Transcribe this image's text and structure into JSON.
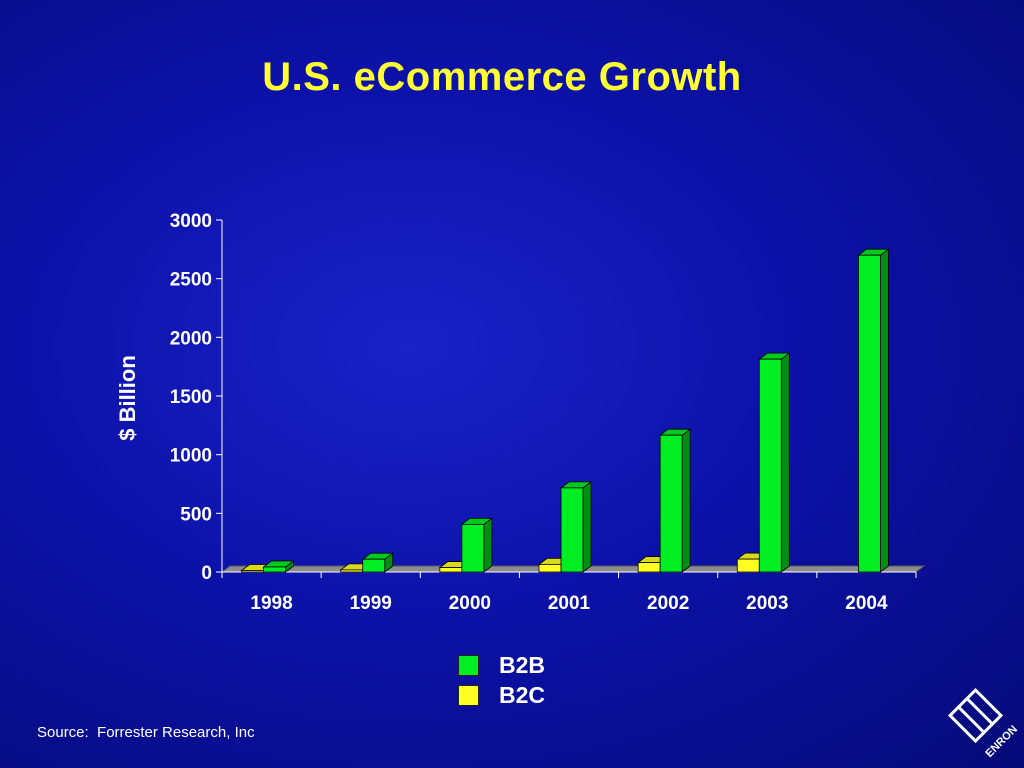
{
  "title": "U.S. eCommerce Growth",
  "source": "Source:  Forrester Research, Inc",
  "colors": {
    "background": "#0c12a8",
    "title": "#ffff33",
    "b2b": "#00ee22",
    "b2c": "#ffff22",
    "floor": "#8c8c8c"
  },
  "logo": {
    "text": "ENRON"
  },
  "chart_data": {
    "type": "bar",
    "categories": [
      "1998",
      "1999",
      "2000",
      "2001",
      "2002",
      "2003",
      "2004"
    ],
    "series": [
      {
        "name": "B2B",
        "values": [
          43,
          109,
          406,
          717,
          1166,
          1814,
          2700
        ]
      },
      {
        "name": "B2C",
        "values": [
          8,
          18,
          38,
          65,
          80,
          110,
          0
        ]
      }
    ],
    "ylabel": "$ Billion",
    "xlabel": "",
    "ylim": [
      0,
      3000
    ],
    "yticks": [
      "0",
      "500",
      "1000",
      "1500",
      "2000",
      "2500",
      "3000"
    ],
    "legend_position": "bottom-center",
    "style": "3d-bar"
  }
}
